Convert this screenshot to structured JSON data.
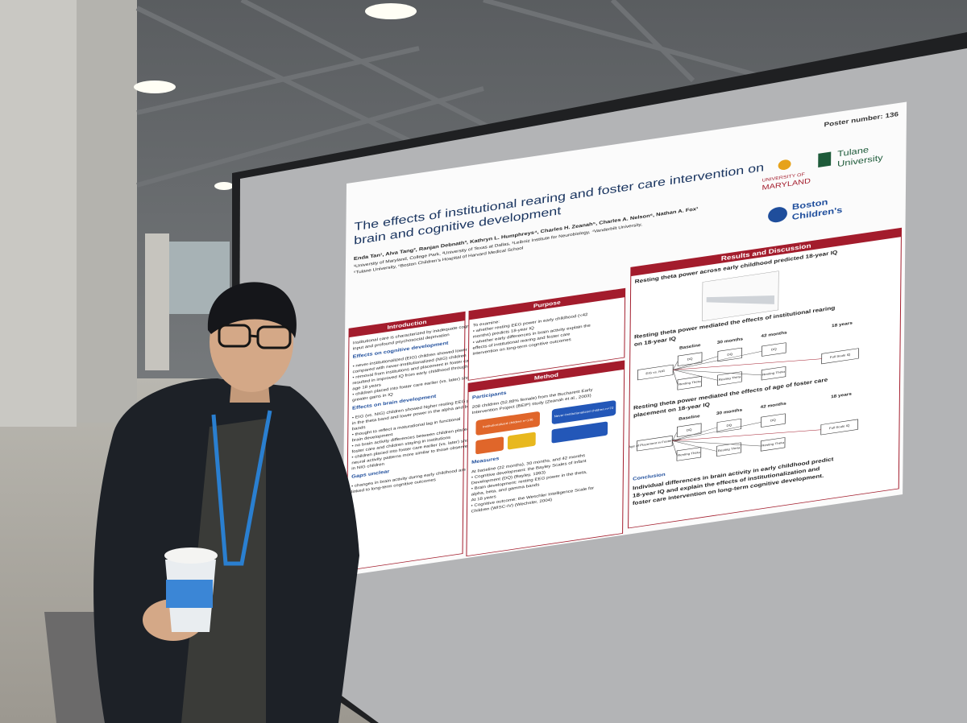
{
  "poster": {
    "number": "Poster number: 136",
    "title": [
      "The effects of institutional rearing and foster care intervention on",
      "brain and cognitive development"
    ],
    "authors": "Enda Tan¹, Alva Tang², Ranjan Debnath³, Kathryn L. Humphreys⁴, Charles H. Zeanah⁵, Charles A. Nelson⁶, Nathan A. Fox¹",
    "affiliations": [
      "¹University of Maryland, College Park, ²University of Texas at Dallas, ³Leibniz Institute for Neurobiology, ⁴Vanderbilt University,",
      "⁵Tulane University, ⁶Boston Children's Hospital of Harvard Medical School"
    ],
    "logos": {
      "maryland": [
        "UNIVERSITY OF",
        "MARYLAND"
      ],
      "tulane": [
        "Tulane",
        "University"
      ],
      "boston": [
        "Boston",
        "Children's"
      ]
    },
    "sections": [
      {
        "heading": "Introduction",
        "blocks": [
          {
            "kind": "body",
            "lines": [
              "Institutional care is characterized by inadequate cognitive",
              "input and profound psychosocial deprivation"
            ]
          },
          {
            "kind": "sub",
            "lines": [
              "Effects on cognitive development"
            ]
          },
          {
            "kind": "body",
            "lines": [
              "• never-institutionalized (EIG) children showed lower IQ",
              "compared with never-institutionalized (NIG) children",
              "• removal from institutions and placement in foster care",
              "resulted in improved IQ from early childhood through",
              "age 18 years",
              "• children placed into foster care earlier (vs. later) showed",
              "greater gains in IQ"
            ]
          },
          {
            "kind": "sub",
            "lines": [
              "Effects on brain development"
            ]
          },
          {
            "kind": "body",
            "lines": [
              "• EIG (vs. NIG) children showed higher resting EEG power",
              "in the theta band and lower power in the alpha and beta",
              "bands",
              "• thought to reflect a maturational lag in functional",
              "brain development",
              "• no brain activity differences between children placed in",
              "foster care and children staying in institutions",
              "• children placed into foster care earlier (vs. later) showed",
              "neural activity patterns more similar to those observed",
              "in NIG children"
            ]
          },
          {
            "kind": "sub",
            "lines": [
              "Gaps unclear"
            ]
          },
          {
            "kind": "body",
            "lines": [
              "• changes in brain activity during early childhood are",
              "linked to long-term cognitive outcomes"
            ]
          }
        ]
      },
      {
        "heading": "Purpose",
        "blocks": [
          {
            "kind": "body",
            "lines": [
              "To examine:",
              "• whether resting EEG power in early childhood (<42",
              "months) predicts 18-year IQ",
              "• whether early differences in brain activity explain the",
              "effects of institutional rearing and foster care",
              "intervention on long-term cognitive outcomes"
            ]
          }
        ]
      },
      {
        "heading": "Method",
        "blocks": [
          {
            "kind": "sub",
            "lines": [
              "Participants"
            ]
          },
          {
            "kind": "body",
            "lines": [
              "208 children (52.88% female) from the Bucharest Early",
              "Intervention Project (BEIP) study (Zeanah et al., 2003)"
            ]
          },
          {
            "kind": "gap",
            "lines": []
          },
          {
            "kind": "sub",
            "lines": [
              "Measures"
            ]
          },
          {
            "kind": "body",
            "lines": [
              "At baseline (22 months), 30 months, and 42 months",
              "• Cognitive development: the Bayley Scales of Infant",
              "Development (DQ) (Bayley, 1993)",
              "• Brain development: resting EEG power in the theta,",
              "alpha, beta, and gamma bands",
              "At 18 years",
              "• Cognitive outcome: the Weschler Intelligence Scale for",
              "Children (WISC-IV) (Wechsler, 2004)"
            ]
          }
        ]
      },
      {
        "heading": "Results and Discussion",
        "blocks": [
          {
            "kind": "big",
            "lines": [
              "Resting theta power across early childhood predicted 18-year IQ"
            ]
          },
          {
            "kind": "plot",
            "lines": []
          },
          {
            "kind": "big",
            "lines": [
              "Resting theta power mediated the effects of institutional rearing",
              "on 18-year IQ"
            ]
          },
          {
            "kind": "diagram",
            "lines": []
          },
          {
            "kind": "big",
            "lines": [
              "Resting theta power mediated the effects of age of foster care",
              "placement on 18-year IQ"
            ]
          },
          {
            "kind": "diagram",
            "lines": []
          },
          {
            "kind": "sub",
            "lines": [
              "Conclusion"
            ]
          },
          {
            "kind": "big",
            "lines": [
              "Individual differences in brain activity in early childhood predict",
              "18-year IQ and explain the effects of institutionalization and",
              "foster care intervention on long-term cognitive development."
            ]
          }
        ]
      }
    ],
    "groups": [
      "Institutionalized children n=136",
      "Never-Institutionalized children n=72"
    ],
    "diagram_headers": [
      "Baseline",
      "30 months",
      "42 months",
      "18 years"
    ],
    "diagram_nodes": [
      [
        "EIG vs. NIG",
        "DQ",
        "DQ",
        "DQ",
        "Resting Theta",
        "Resting Theta",
        "Resting Theta",
        "Full Scale IQ"
      ],
      [
        "Age of Placement in Foster Care",
        "DQ",
        "DQ",
        "DQ",
        "Resting Theta",
        "Resting Theta",
        "Resting Theta",
        "Full Scale IQ"
      ]
    ]
  }
}
